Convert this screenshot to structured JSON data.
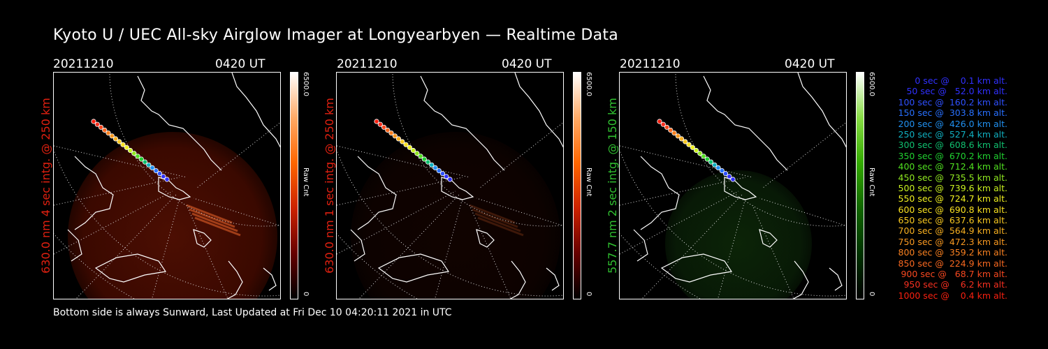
{
  "title": "Kyoto U / UEC All-sky Airglow Imager at Longyearbyen — Realtime Data",
  "footer": "Bottom side is always Sunward, Last Updated at Fri Dec 10 04:20:11 2021 in UTC",
  "panels": [
    {
      "date": "20211210",
      "time": "0420 UT",
      "side_label": "630.0 nm 4 sec intg. @ 250 km",
      "label_color": "#e02010",
      "cbar_max": "6500.0",
      "cbar_min": "0",
      "cbar_unit": "Raw Cnt",
      "colormap": "red"
    },
    {
      "date": "20211210",
      "time": "0420 UT",
      "side_label": "630.0 nm 1 sec intg. @ 250 km",
      "label_color": "#e02010",
      "cbar_max": "6500.0",
      "cbar_min": "0",
      "cbar_unit": "Raw Cnt",
      "colormap": "red"
    },
    {
      "date": "20211210",
      "time": "0420 UT",
      "side_label": "557.7 nm 2 sec intg. @ 150 km",
      "label_color": "#30c030",
      "cbar_max": "6500.0",
      "cbar_min": "0",
      "cbar_unit": "Raw Cnt",
      "colormap": "green"
    }
  ],
  "legend": [
    {
      "text": "0 sec @    0.1 km alt.",
      "color": "#3030ff"
    },
    {
      "text": "50 sec @   52.0 km alt.",
      "color": "#3030ff"
    },
    {
      "text": "100 sec @  160.2 km alt.",
      "color": "#2e50ff"
    },
    {
      "text": "150 sec @  303.8 km alt.",
      "color": "#2870ff"
    },
    {
      "text": "200 sec @  426.0 km alt.",
      "color": "#2090f0"
    },
    {
      "text": "250 sec @  527.4 km alt.",
      "color": "#10b0c0"
    },
    {
      "text": "300 sec @  608.6 km alt.",
      "color": "#10c070"
    },
    {
      "text": "350 sec @  670.2 km alt.",
      "color": "#20d030"
    },
    {
      "text": "400 sec @  712.4 km alt.",
      "color": "#50e020"
    },
    {
      "text": "450 sec @  735.5 km alt.",
      "color": "#90e820"
    },
    {
      "text": "500 sec @  739.6 km alt.",
      "color": "#c8f020"
    },
    {
      "text": "550 sec @  724.7 km alt.",
      "color": "#f0f020"
    },
    {
      "text": "600 sec @  690.8 km alt.",
      "color": "#f8e020"
    },
    {
      "text": "650 sec @  637.6 km alt.",
      "color": "#f8c820"
    },
    {
      "text": "700 sec @  564.9 km alt.",
      "color": "#f8b020"
    },
    {
      "text": "750 sec @  472.3 km alt.",
      "color": "#f89820"
    },
    {
      "text": "800 sec @  359.2 km alt.",
      "color": "#f88020"
    },
    {
      "text": "850 sec @  224.9 km alt.",
      "color": "#f86820"
    },
    {
      "text": "900 sec @   68.7 km alt.",
      "color": "#f84820"
    },
    {
      "text": "950 sec @    6.2 km alt.",
      "color": "#f83020"
    },
    {
      "text": "1000 sec @    0.4 km alt.",
      "color": "#f82010"
    }
  ],
  "colors": {
    "red": "#ff2000",
    "green": "#30c030"
  }
}
